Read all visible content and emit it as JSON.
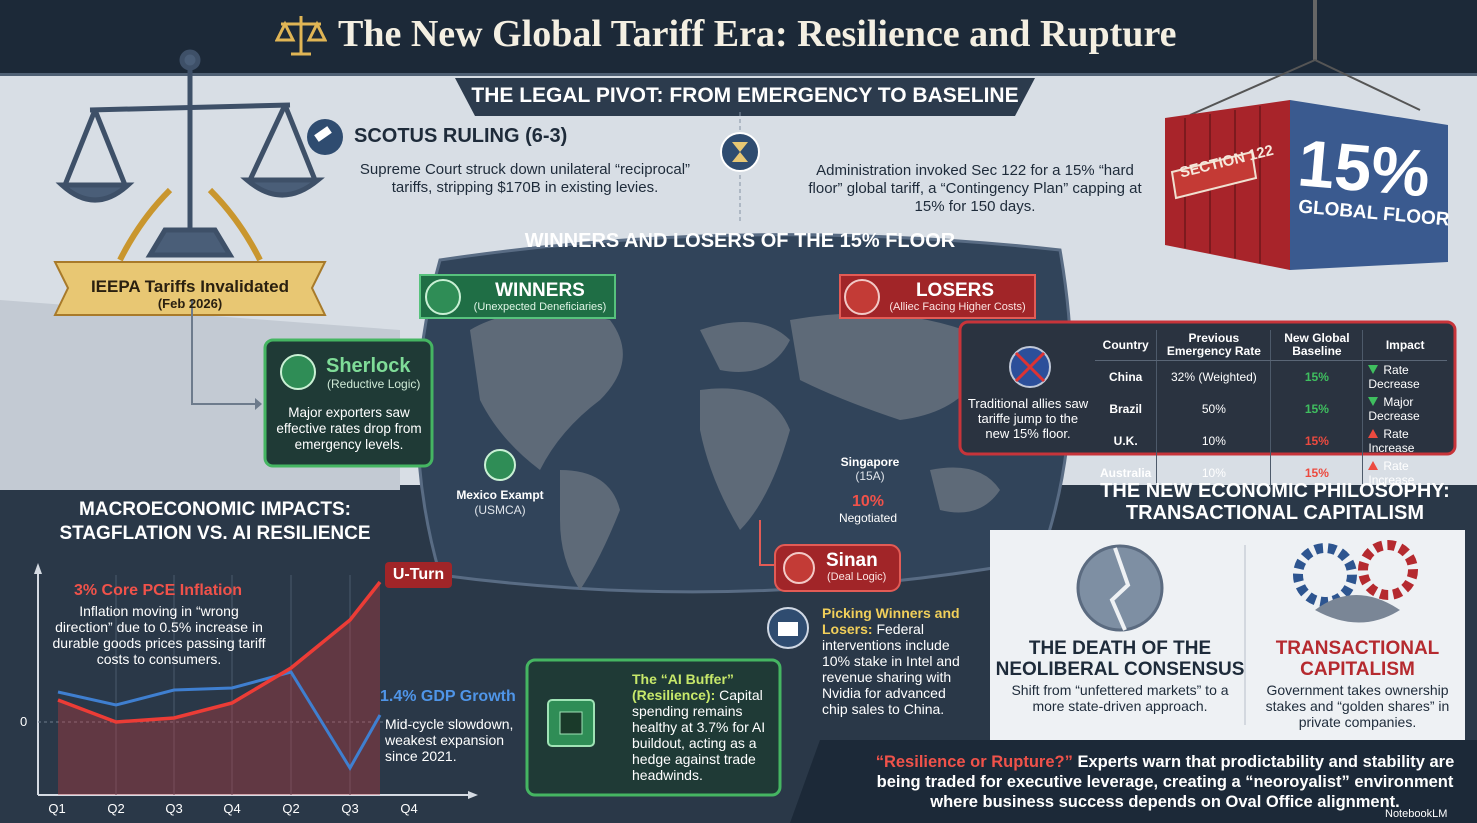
{
  "header": {
    "title": "The New Global Tariff Era: Resilience and Rupture"
  },
  "legal_pivot": {
    "title": "THE LEGAL PIVOT: FROM EMERGENCY TO BASELINE",
    "ruling_title": "SCOTUS RULING (6-3)",
    "ruling_text": "Supreme Court struck down unilateral “reciprocal” tariffs, stripping $170B in existing levies.",
    "administration_text": "Administration invoked Sec 122 for a 15% “hard floor” global tariff, a “Contingency Plan” capping at 15% for 150 days."
  },
  "ieepa": {
    "title": "IEEPA Tariffs Invalidated",
    "date": "(Feb 2026)"
  },
  "container": {
    "sign": "SECTION 122",
    "rate": "15%",
    "caption": "GLOBAL FLOOR"
  },
  "winners_losers": {
    "title": "WINNERS AND LOSERS OF THE 15% FLOOR",
    "winners": {
      "title": "WINNERS",
      "subtitle": "(Unexpected Deneficiaries)"
    },
    "losers": {
      "title": "LOSERS",
      "subtitle": "(Alliec Facing Higher Costs)"
    },
    "sherlock": {
      "title": "Sherlock",
      "subtitle": "(Reductive Logic)",
      "text": "Major exporters saw effective rates drop from emergency levels."
    },
    "mexico": {
      "title": "Mexico Exampt",
      "subtitle": "(USMCA)"
    },
    "singapore": {
      "title": "Singapore",
      "subtitle": "(15A)"
    },
    "negotiated": {
      "rate": "10%",
      "label": "Negotiated"
    },
    "sinan": {
      "title": "Sinan",
      "subtitle": "(Deal Logic)"
    },
    "allies_text": "Traditional allies saw tariffe jump to the new 15% floor."
  },
  "table": {
    "headers": [
      "Country",
      "Previous Emergency Rate",
      "New Global Baseline",
      "Impact"
    ],
    "rows": [
      [
        "China",
        "32% (Weighted)",
        "15%",
        "Rate Decrease"
      ],
      [
        "Brazil",
        "50%",
        "15%",
        "Major Decrease"
      ],
      [
        "U.K.",
        "10%",
        "15%",
        "Rate Increase"
      ],
      [
        "Australia",
        "10%",
        "15%",
        "Rate Increase"
      ]
    ],
    "row_colors": [
      "#3fbf5f",
      "#3fbf5f",
      "#ec4a3f",
      "#ec4a3f"
    ]
  },
  "philosophy": {
    "title": "THE NEW ECONOMIC PHILOSOPHY: TRANSACTIONAL CAPITALISM",
    "left": {
      "title": "THE DEATH OF THE NEOLIBERAL CONSENSUS",
      "text": "Shift from “unfettered markets” to a more state-driven approach."
    },
    "right": {
      "title": "TRANSACTIONAL CAPITALISM",
      "text": "Government takes ownership stakes and “golden shares” in private companies."
    }
  },
  "macro": {
    "title": "MACROECONOMIC IMPACTS: STAGFLATION VS. AI RESILIENCE",
    "zero_label": "0",
    "quarters": [
      "Q1",
      "Q2",
      "Q3",
      "Q4",
      "Q2",
      "Q3",
      "Q4"
    ],
    "inflation": {
      "title": "3% Core PCE Inflation",
      "text": "Inflation moving in “wrong direction” due to 0.5% increase in durable goods prices passing tariff costs to consumers."
    },
    "u_turn": "U-Turn",
    "gdp": {
      "title": "1.4% GDP Growth",
      "text": "Mid-cycle slowdown, weakest expansion since 2021."
    },
    "ai_buffer": {
      "title": "The “AI Buffer” (Resilience):",
      "text": "Capital spending remains healthy at 3.7% for AI buildout, acting as a hedge against trade headwinds."
    },
    "picking": {
      "title": "Picking Winners and Losers:",
      "text": "Federal interventions include 10% stake in Intel and revenue sharing with Nvidia for advanced chip sales to China."
    }
  },
  "footer": {
    "highlight": "“Resilience or Rupture?”",
    "text": "Experts warn that prodictability and stability are being traded for executive leverage, creating a “neoroyalist” environment where business success depends on Oval Office alignment.",
    "brand": "NotebookLM"
  }
}
